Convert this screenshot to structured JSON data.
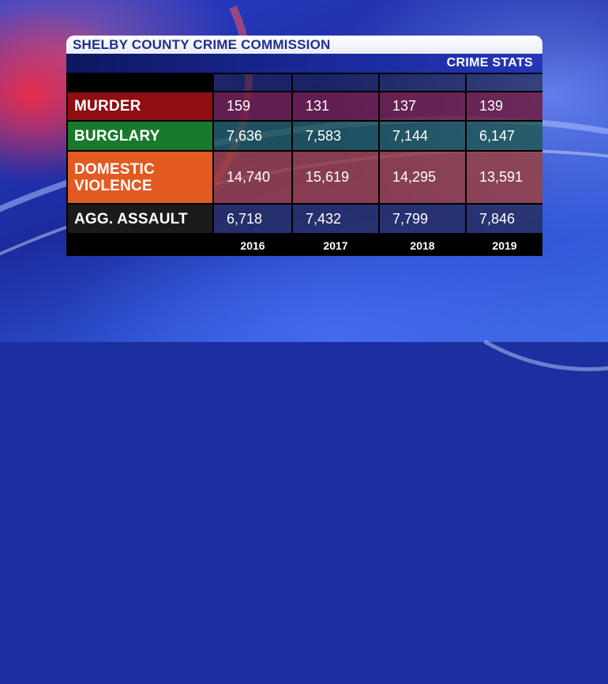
{
  "header": {
    "title": "SHELBY COUNTY CRIME COMMISSION",
    "subtitle": "CRIME STATS"
  },
  "table": {
    "years": [
      "2016",
      "2017",
      "2018",
      "2019"
    ],
    "rows": [
      {
        "label": "MURDER",
        "values": [
          "159",
          "131",
          "137",
          "139"
        ]
      },
      {
        "label": "BURGLARY",
        "values": [
          "7,636",
          "7,583",
          "7,144",
          "6,147"
        ]
      },
      {
        "label_line1": "DOMESTIC",
        "label_line2": "VIOLENCE",
        "values": [
          "14,740",
          "15,619",
          "14,295",
          "13,591"
        ]
      },
      {
        "label": "AGG. ASSAULT",
        "values": [
          "6,718",
          "7,432",
          "7,799",
          "7,846"
        ]
      }
    ]
  },
  "colors": {
    "title_text": "#1f2f8e",
    "murder": "#8e0e12",
    "burglary": "#197a2e",
    "domestic_violence": "#e25a22",
    "agg_assault": "#1a1a1a",
    "background": "#1c2fa0"
  }
}
